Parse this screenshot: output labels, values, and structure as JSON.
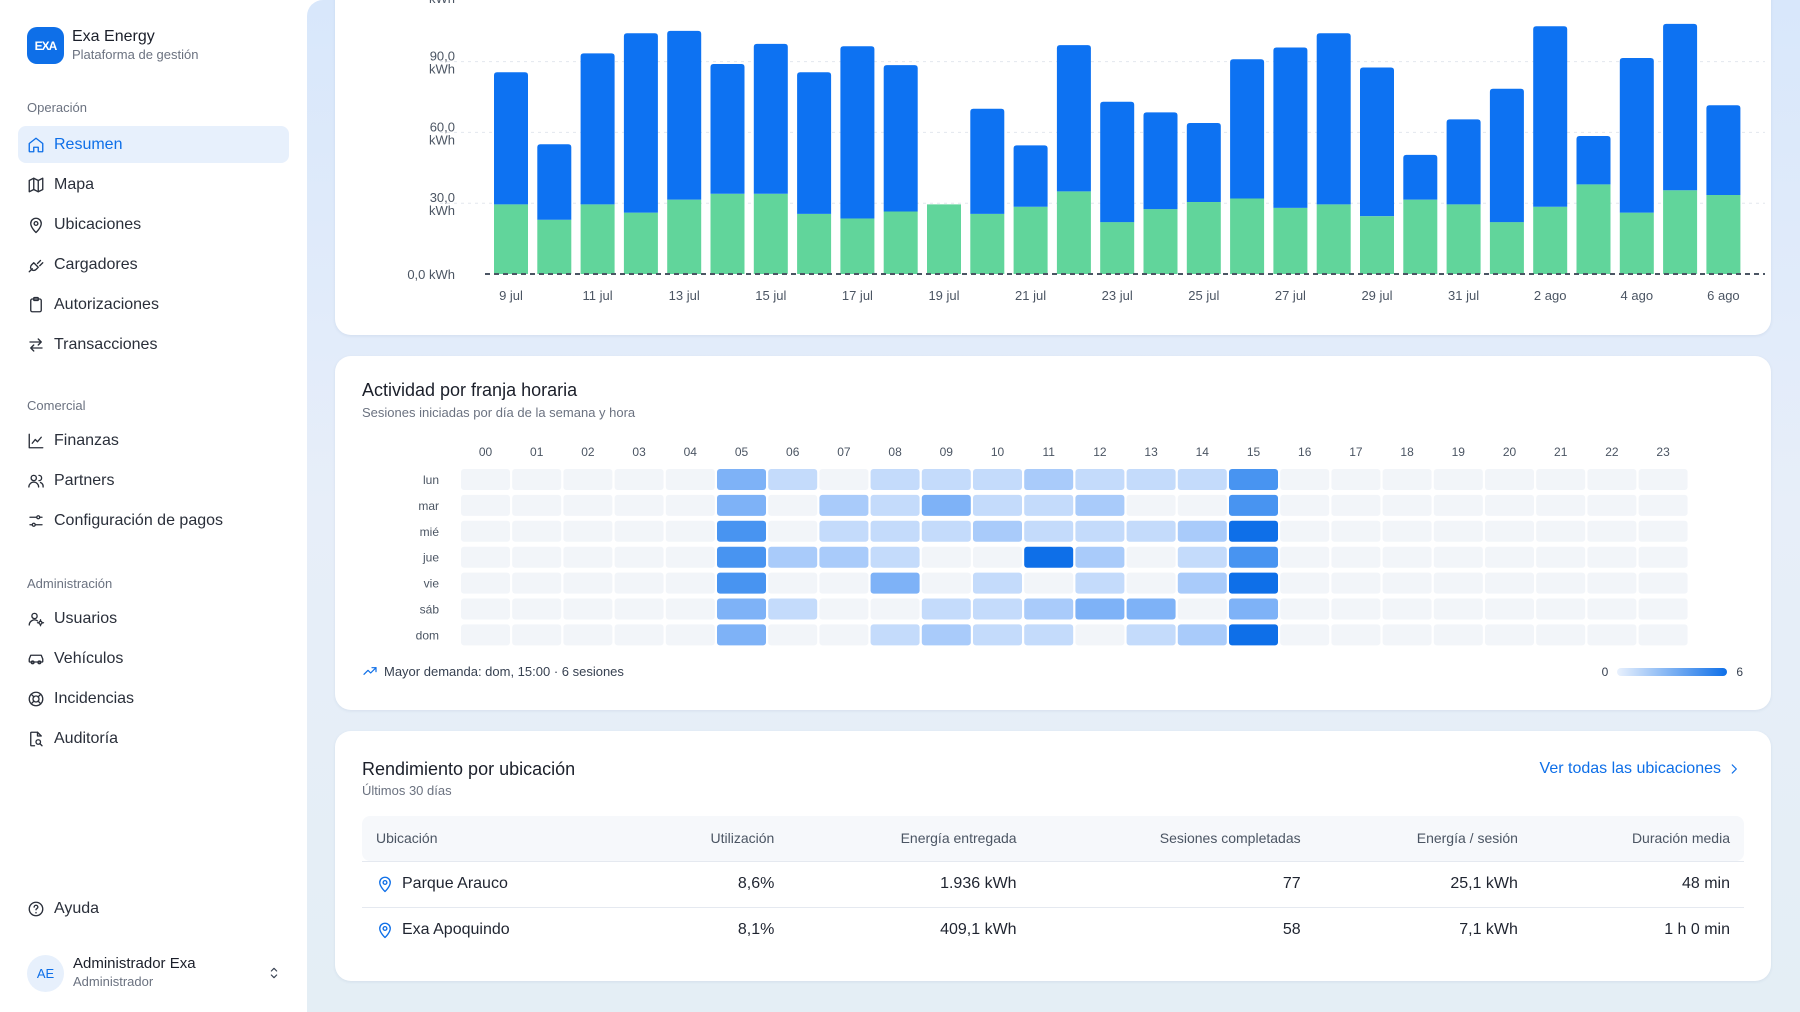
{
  "brand": {
    "logo_text": "EXA",
    "name": "Exa Energy",
    "subtitle": "Plataforma de gestión"
  },
  "nav": {
    "sections": [
      {
        "label": "Operación"
      },
      {
        "label": "Comercial"
      },
      {
        "label": "Administración"
      }
    ],
    "items": [
      {
        "label": "Resumen",
        "icon": "home-icon",
        "active": true
      },
      {
        "label": "Mapa",
        "icon": "map-icon"
      },
      {
        "label": "Ubicaciones",
        "icon": "pin-icon"
      },
      {
        "label": "Cargadores",
        "icon": "plug-icon"
      },
      {
        "label": "Autorizaciones",
        "icon": "clipboard-icon"
      },
      {
        "label": "Transacciones",
        "icon": "swap-icon"
      },
      {
        "label": "Finanzas",
        "icon": "line-chart-icon"
      },
      {
        "label": "Partners",
        "icon": "users-icon"
      },
      {
        "label": "Configuración de pagos",
        "icon": "settings-sliders-icon"
      },
      {
        "label": "Usuarios",
        "icon": "user-key-icon"
      },
      {
        "label": "Vehículos",
        "icon": "car-icon"
      },
      {
        "label": "Incidencias",
        "icon": "lifebuoy-icon"
      },
      {
        "label": "Auditoría",
        "icon": "audit-icon"
      }
    ],
    "help": "Ayuda"
  },
  "user": {
    "initials": "AE",
    "name": "Administrador Exa",
    "role": "Administrador"
  },
  "colors": {
    "accent": "#0e6fe8",
    "bar_top": "#0d72f2",
    "bar_bottom": "#61d59b"
  },
  "chart_data": {
    "type": "bar",
    "stacked": true,
    "ylabel_unit": "kWh",
    "y_ticks": [
      "0,0 kWh",
      "30,0 kWh",
      "60,0 kWh",
      "90,0 kWh",
      "kWh"
    ],
    "ylim": [
      0,
      120
    ],
    "x_tick_labels": [
      "9 jul",
      "11 jul",
      "13 jul",
      "15 jul",
      "17 jul",
      "19 jul",
      "21 jul",
      "23 jul",
      "25 jul",
      "27 jul",
      "29 jul",
      "31 jul",
      "2 ago",
      "4 ago",
      "6 ago"
    ],
    "categories": [
      "9 jul",
      "10 jul",
      "11 jul",
      "12 jul",
      "13 jul",
      "14 jul",
      "15 jul",
      "16 jul",
      "17 jul",
      "18 jul",
      "19 jul",
      "20 jul",
      "21 jul",
      "22 jul",
      "23 jul",
      "24 jul",
      "25 jul",
      "26 jul",
      "27 jul",
      "28 jul",
      "29 jul",
      "30 jul",
      "31 jul",
      "1 ago",
      "2 ago",
      "3 ago",
      "4 ago",
      "5 ago",
      "6 ago"
    ],
    "series": [
      {
        "values": [
          29.5,
          23.0,
          29.5,
          26.0,
          31.5,
          34.0,
          34.0,
          25.5,
          23.5,
          26.5,
          29.5,
          25.5,
          28.5,
          35.0,
          22.0,
          27.5,
          30.5,
          32.0,
          28.0,
          29.5,
          24.5,
          31.5,
          29.5,
          22.0,
          28.5,
          38.0,
          26.0,
          35.5,
          33.5
        ]
      },
      {
        "values": [
          56.0,
          32.0,
          64.0,
          76.0,
          71.5,
          55.0,
          63.5,
          60.0,
          73.0,
          62.0,
          0.0,
          44.5,
          26.0,
          62.0,
          51.0,
          41.0,
          33.5,
          59.0,
          68.0,
          72.5,
          63.0,
          19.0,
          36.0,
          56.5,
          76.5,
          20.5,
          65.5,
          70.5,
          38.0
        ]
      }
    ]
  },
  "heatmap": {
    "title": "Actividad por franja horaria",
    "subtitle": "Sesiones iniciadas por día de la semana y hora",
    "hours": [
      "00",
      "01",
      "02",
      "03",
      "04",
      "05",
      "06",
      "07",
      "08",
      "09",
      "10",
      "11",
      "12",
      "13",
      "14",
      "15",
      "16",
      "17",
      "18",
      "19",
      "20",
      "21",
      "22",
      "23"
    ],
    "days": [
      "lun",
      "mar",
      "mié",
      "jue",
      "vie",
      "sáb",
      "dom"
    ],
    "max": 6,
    "values": [
      [
        0,
        0,
        0,
        0,
        0,
        4,
        2,
        0,
        2,
        2,
        2,
        3,
        2,
        2,
        2,
        5,
        0,
        0,
        0,
        0,
        0,
        0,
        0,
        0
      ],
      [
        0,
        0,
        0,
        0,
        0,
        4,
        0,
        3,
        2,
        4,
        2,
        2,
        3,
        0,
        0,
        5,
        0,
        0,
        0,
        0,
        0,
        0,
        0,
        0
      ],
      [
        0,
        0,
        0,
        0,
        0,
        5,
        0,
        2,
        2,
        2,
        3,
        2,
        2,
        2,
        3,
        6,
        0,
        0,
        0,
        0,
        0,
        0,
        0,
        0
      ],
      [
        0,
        0,
        0,
        0,
        0,
        5,
        3,
        3,
        2,
        0,
        0,
        6,
        3,
        0,
        2,
        5,
        0,
        0,
        0,
        0,
        0,
        0,
        0,
        0
      ],
      [
        0,
        0,
        0,
        0,
        0,
        5,
        0,
        0,
        4,
        0,
        2,
        0,
        2,
        0,
        3,
        6,
        0,
        0,
        0,
        0,
        0,
        0,
        0,
        0
      ],
      [
        0,
        0,
        0,
        0,
        0,
        4,
        2,
        0,
        0,
        2,
        2,
        3,
        4,
        4,
        0,
        4,
        0,
        0,
        0,
        0,
        0,
        0,
        0,
        0
      ],
      [
        0,
        0,
        0,
        0,
        0,
        4,
        0,
        0,
        2,
        3,
        2,
        2,
        0,
        2,
        3,
        6,
        0,
        0,
        0,
        0,
        0,
        0,
        0,
        0
      ]
    ],
    "peak": "Mayor demanda: dom, 15:00 · 6 sesiones",
    "scale_min": "0",
    "scale_max": "6"
  },
  "performance": {
    "title": "Rendimiento por ubicación",
    "subtitle": "Últimos 30 días",
    "link": "Ver todas las ubicaciones",
    "columns": [
      "Ubicación",
      "Utilización",
      "Energía entregada",
      "Sesiones completadas",
      "Energía / sesión",
      "Duración media"
    ],
    "rows": [
      [
        "Parque Arauco",
        "8,6%",
        "1.936 kWh",
        "77",
        "25,1 kWh",
        "48 min"
      ],
      [
        "Exa Apoquindo",
        "8,1%",
        "409,1 kWh",
        "58",
        "7,1 kWh",
        "1 h 0 min"
      ]
    ]
  }
}
